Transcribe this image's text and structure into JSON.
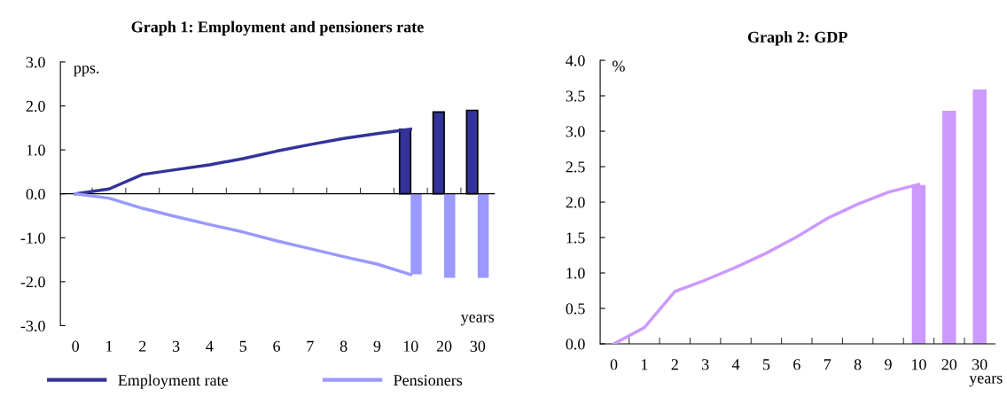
{
  "chart_data": [
    {
      "type": "line",
      "title": "Graph 1: Employment and pensioners rate",
      "ylabel": "pps.",
      "xlabel": "years",
      "categories": [
        "0",
        "1",
        "2",
        "3",
        "4",
        "5",
        "6",
        "7",
        "8",
        "9",
        "10",
        "20",
        "30"
      ],
      "series": [
        {
          "name": "Employment rate",
          "color": "#333399",
          "values": [
            0,
            0.11,
            0.44,
            0.55,
            0.66,
            0.8,
            0.97,
            1.12,
            1.26,
            1.37,
            1.47,
            null,
            null
          ]
        },
        {
          "name": "Pensioners",
          "color": "#9999ff",
          "values": [
            0,
            -0.1,
            -0.33,
            -0.52,
            -0.7,
            -0.87,
            -1.07,
            -1.25,
            -1.43,
            -1.6,
            -1.84,
            null,
            null
          ]
        },
        {
          "type": "bar",
          "color": "#333399",
          "values": [
            null,
            null,
            null,
            null,
            null,
            null,
            null,
            null,
            null,
            null,
            1.47,
            1.86,
            1.9
          ]
        },
        {
          "type": "bar",
          "color": "#9999ff",
          "values": [
            null,
            null,
            null,
            null,
            null,
            null,
            null,
            null,
            null,
            null,
            -1.83,
            -1.91,
            -1.91
          ]
        }
      ],
      "ylim": [
        -3,
        3
      ],
      "yticks": [
        {
          "value": -3,
          "label": "-3.0"
        },
        {
          "value": -2,
          "label": "-2.0"
        },
        {
          "value": -1,
          "label": "-1.0"
        },
        {
          "value": 0,
          "label": "0.0"
        },
        {
          "value": 1,
          "label": "1.0"
        },
        {
          "value": 2,
          "label": "2.0"
        },
        {
          "value": 3,
          "label": "3.0"
        }
      ],
      "legend": "bottom"
    },
    {
      "type": "line",
      "title": "Graph 2: GDP",
      "ylabel": "%",
      "xlabel": "years",
      "categories": [
        "0",
        "1",
        "2",
        "3",
        "4",
        "5",
        "6",
        "7",
        "8",
        "9",
        "10",
        "20",
        "30"
      ],
      "series": [
        {
          "color": "#cc99ff",
          "values": [
            0,
            0.23,
            0.74,
            0.9,
            1.08,
            1.28,
            1.51,
            1.77,
            1.97,
            2.14,
            2.25,
            null,
            null
          ]
        },
        {
          "type": "bar",
          "color": "#cc99ff",
          "values": [
            null,
            null,
            null,
            null,
            null,
            null,
            null,
            null,
            null,
            null,
            2.24,
            3.29,
            3.59
          ]
        }
      ],
      "ylim": [
        0,
        4
      ],
      "yticks": [
        {
          "value": 0,
          "label": "0.0"
        },
        {
          "value": 0.5,
          "label": "0.5"
        },
        {
          "value": 1,
          "label": "1.0"
        },
        {
          "value": 1.5,
          "label": "1.5"
        },
        {
          "value": 2,
          "label": "2.0"
        },
        {
          "value": 2.5,
          "label": "2.5"
        },
        {
          "value": 3,
          "label": "3.0"
        },
        {
          "value": 3.5,
          "label": "3.5"
        },
        {
          "value": 4,
          "label": "4.0"
        }
      ],
      "legend": false
    }
  ]
}
